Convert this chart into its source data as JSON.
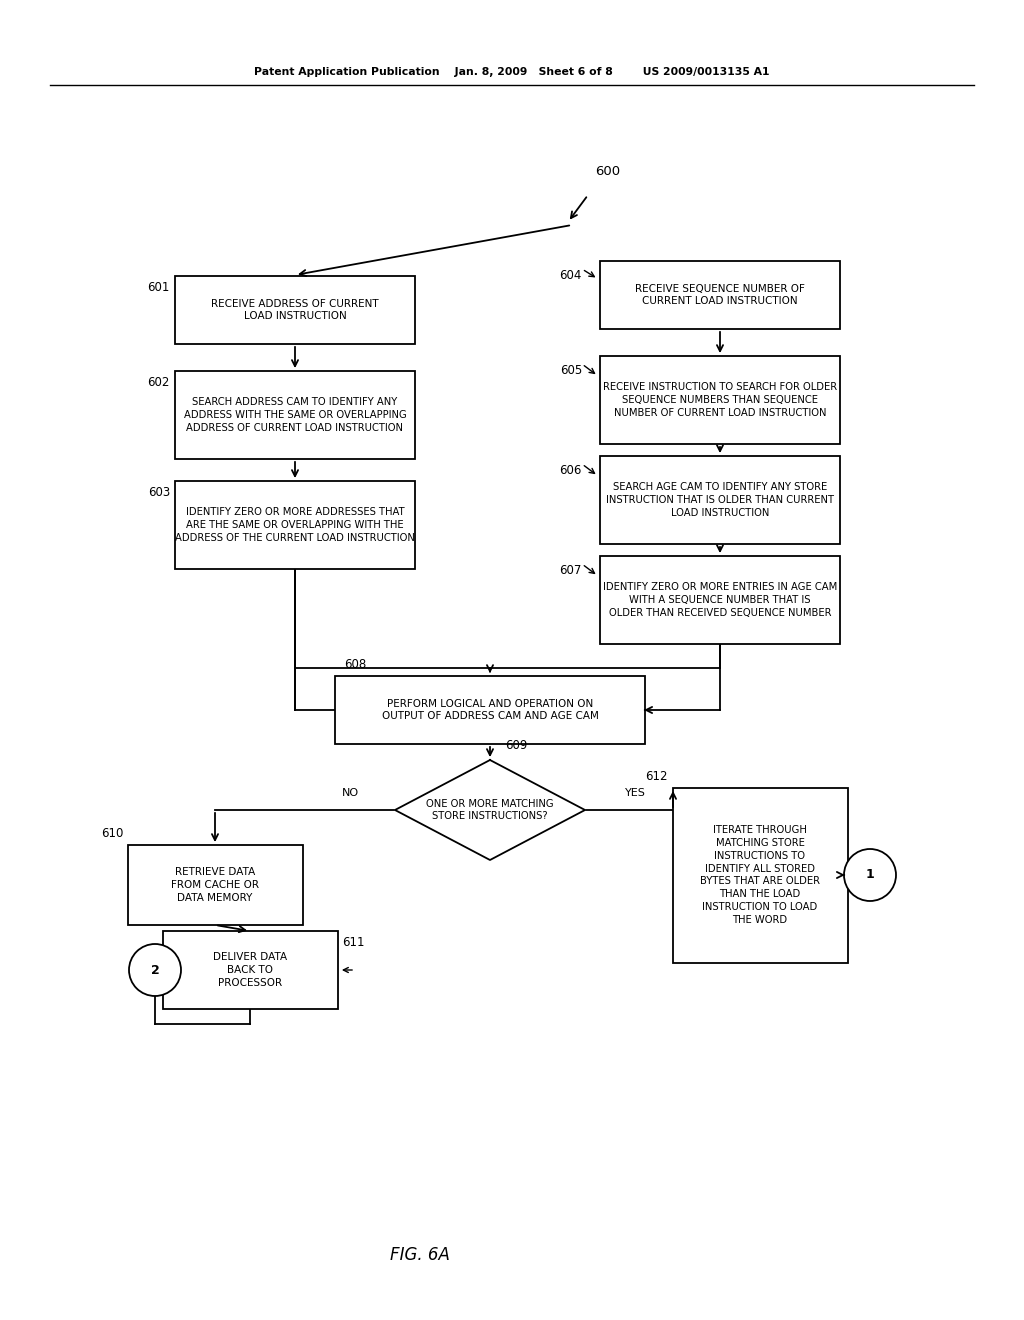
{
  "bg_color": "#ffffff",
  "header": "Patent Application Publication    Jan. 8, 2009   Sheet 6 of 8        US 2009/0013135 A1",
  "fig_label": "FIG. 6A",
  "n601": "RECEIVE ADDRESS OF CURRENT\nLOAD INSTRUCTION",
  "n602": "SEARCH ADDRESS CAM TO IDENTIFY ANY\nADDRESS WITH THE SAME OR OVERLAPPING\nADDRESS OF CURRENT LOAD INSTRUCTION",
  "n603": "IDENTIFY ZERO OR MORE ADDRESSES THAT\nARE THE SAME OR OVERLAPPING WITH THE\nADDRESS OF THE CURRENT LOAD INSTRUCTION",
  "n604": "RECEIVE SEQUENCE NUMBER OF\nCURRENT LOAD INSTRUCTION",
  "n605": "RECEIVE INSTRUCTION TO SEARCH FOR OLDER\nSEQUENCE NUMBERS THAN SEQUENCE\nNUMBER OF CURRENT LOAD INSTRUCTION",
  "n606": "SEARCH AGE CAM TO IDENTIFY ANY STORE\nINSTRUCTION THAT IS OLDER THAN CURRENT\nLOAD INSTRUCTION",
  "n607": "IDENTIFY ZERO OR MORE ENTRIES IN AGE CAM\nWITH A SEQUENCE NUMBER THAT IS\nOLDER THAN RECEIVED SEQUENCE NUMBER",
  "n608": "PERFORM LOGICAL AND OPERATION ON\nOUTPUT OF ADDRESS CAM AND AGE CAM",
  "n609": "ONE OR MORE MATCHING\nSTORE INSTRUCTIONS?",
  "n610": "RETRIEVE DATA\nFROM CACHE OR\nDATA MEMORY",
  "n611": "DELIVER DATA\nBACK TO\nPROCESSOR",
  "n612": "ITERATE THROUGH\nMATCHING STORE\nINSTRUCTIONS TO\nIDENTIFY ALL STORED\nBYTES THAT ARE OLDER\nTHAN THE LOAD\nINSTRUCTION TO LOAD\nTHE WORD",
  "lbl_no": "NO",
  "lbl_yes": "YES",
  "ref600": "600",
  "ref601": "601",
  "ref602": "602",
  "ref603": "603",
  "ref604": "604",
  "ref605": "605",
  "ref606": "606",
  "ref607": "607",
  "ref608": "608",
  "ref609": "609",
  "ref610": "610",
  "ref611": "611",
  "ref612": "612"
}
